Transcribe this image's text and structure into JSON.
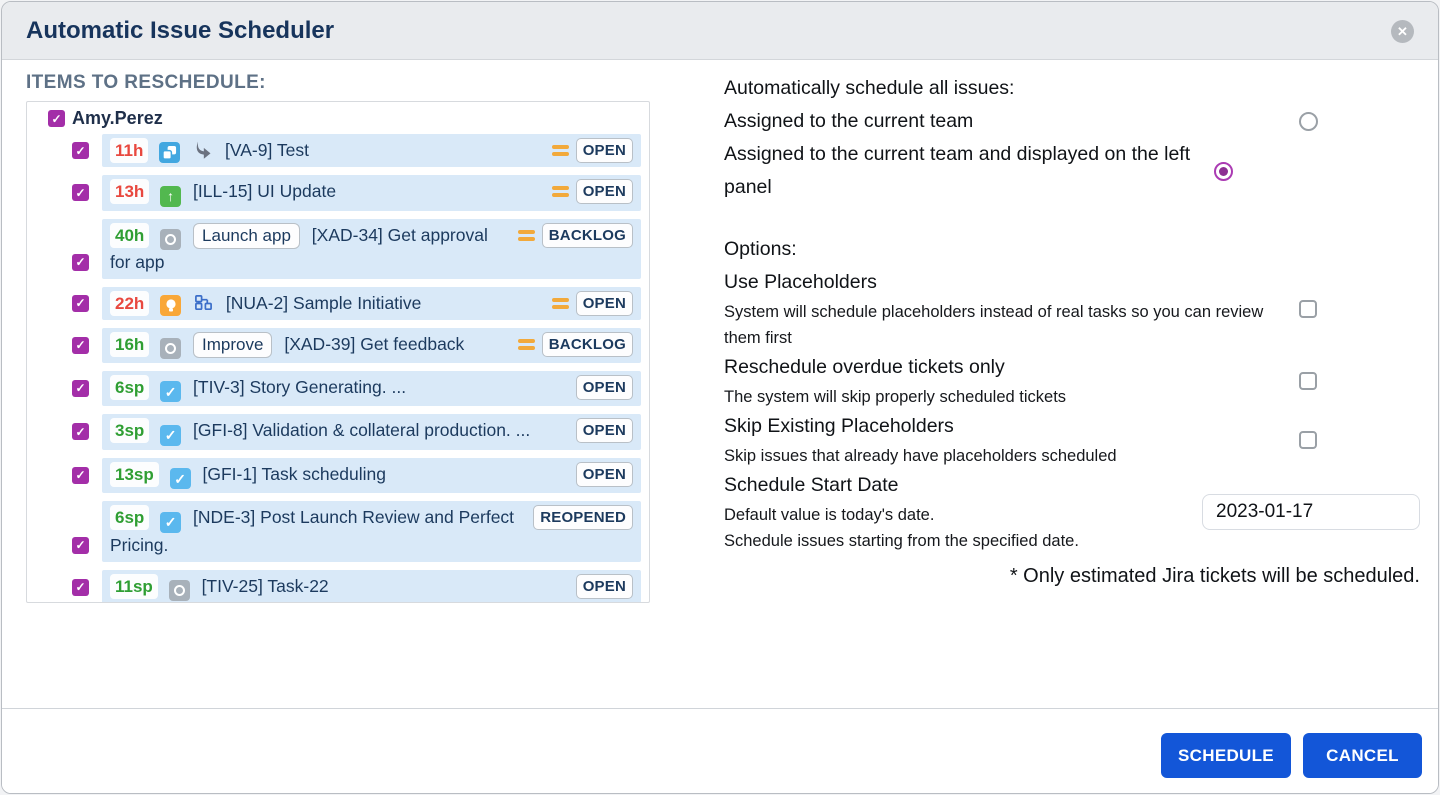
{
  "modal": {
    "title": "Automatic Issue Scheduler"
  },
  "left_panel": {
    "title": "ITEMS TO RESCHEDULE:",
    "user": {
      "name": "Amy.Perez",
      "checked": true
    },
    "items": [
      {
        "estimate": "11h",
        "estimate_color": "red",
        "type_icon": "task-icon",
        "extra_icon": "curved-arrow-icon",
        "badge": "",
        "text": "[VA-9] Test",
        "priority_icon": true,
        "status": "OPEN",
        "lines": 1,
        "checked": true
      },
      {
        "estimate": "13h",
        "estimate_color": "red",
        "type_icon": "improvement-icon",
        "extra_icon": "",
        "badge": "",
        "text": "[ILL-15] UI Update",
        "priority_icon": true,
        "status": "OPEN",
        "lines": 1,
        "checked": true
      },
      {
        "estimate": "40h",
        "estimate_color": "green",
        "type_icon": "circle-icon",
        "extra_icon": "",
        "badge": "Launch app",
        "text": "[XAD-34] Get approval for app",
        "priority_icon": true,
        "status": "BACKLOG",
        "lines": 2,
        "checked": true
      },
      {
        "estimate": "22h",
        "estimate_color": "red",
        "type_icon": "idea-icon",
        "extra_icon": "hierarchy-icon",
        "badge": "",
        "text": "[NUA-2] Sample Initiative",
        "priority_icon": true,
        "status": "OPEN",
        "lines": 1,
        "checked": true
      },
      {
        "estimate": "16h",
        "estimate_color": "green",
        "type_icon": "circle-icon",
        "extra_icon": "",
        "badge": "Improve",
        "text": "[XAD-39] Get feedback",
        "priority_icon": true,
        "status": "BACKLOG",
        "lines": 1,
        "checked": true
      },
      {
        "estimate": "6sp",
        "estimate_color": "green",
        "type_icon": "story-icon",
        "extra_icon": "",
        "badge": "",
        "text": "[TIV-3] Story Generating. ...",
        "priority_icon": false,
        "status": "OPEN",
        "lines": 1,
        "checked": true
      },
      {
        "estimate": "3sp",
        "estimate_color": "green",
        "type_icon": "story-icon",
        "extra_icon": "",
        "badge": "",
        "text": "[GFI-8] Validation & collateral production. ...",
        "priority_icon": false,
        "status": "OPEN",
        "lines": 1,
        "checked": true
      },
      {
        "estimate": "13sp",
        "estimate_color": "green",
        "type_icon": "story-icon",
        "extra_icon": "",
        "badge": "",
        "text": "[GFI-1] Task scheduling",
        "priority_icon": false,
        "status": "OPEN",
        "lines": 1,
        "checked": true
      },
      {
        "estimate": "6sp",
        "estimate_color": "green",
        "type_icon": "story-icon",
        "extra_icon": "",
        "badge": "",
        "text": "[NDE-3] Post Launch Review and Perfect Pricing.",
        "priority_icon": false,
        "status": "REOPENED",
        "lines": 2,
        "checked": true
      },
      {
        "estimate": "11sp",
        "estimate_color": "green",
        "type_icon": "circle-icon",
        "extra_icon": "",
        "badge": "",
        "text": "[TIV-25] Task-22",
        "priority_icon": false,
        "status": "OPEN",
        "lines": 1,
        "checked": true
      }
    ]
  },
  "right_panel": {
    "schedule_heading": "Automatically schedule all issues:",
    "radios": [
      {
        "label": "Assigned to the current team",
        "selected": false
      },
      {
        "label": "Assigned to the current team and displayed on the left panel",
        "selected": true
      }
    ],
    "options_heading": "Options:",
    "options": [
      {
        "title": "Use Placeholders",
        "description": "System will schedule placeholders instead of real tasks so you can review them first",
        "checked": false
      },
      {
        "title": "Reschedule overdue tickets only",
        "description": "The system will skip properly scheduled tickets",
        "checked": false
      },
      {
        "title": "Skip Existing Placeholders",
        "description": "Skip issues that already have placeholders scheduled",
        "checked": false
      }
    ],
    "start_date": {
      "title": "Schedule Start Date",
      "description_line1": "Default value is today's date.",
      "description_line2": "Schedule issues starting from the specified date.",
      "value": "2023-01-17"
    },
    "footnote": "* Only estimated Jira tickets will be scheduled."
  },
  "footer": {
    "schedule_label": "SCHEDULE",
    "cancel_label": "CANCEL"
  },
  "colors": {
    "accent_purple": "#a32ea8",
    "radio_selected": "#ab3bb3",
    "row_blue": "#d9e9f8",
    "button_blue": "#1356d8",
    "estimate_red": "#e8483f",
    "estimate_green": "#2f9e33",
    "priority_orange": "#f2a93b",
    "issue_text": "#1c3a5e",
    "header_bg": "#e9ebee",
    "title_navy": "#17345c"
  }
}
